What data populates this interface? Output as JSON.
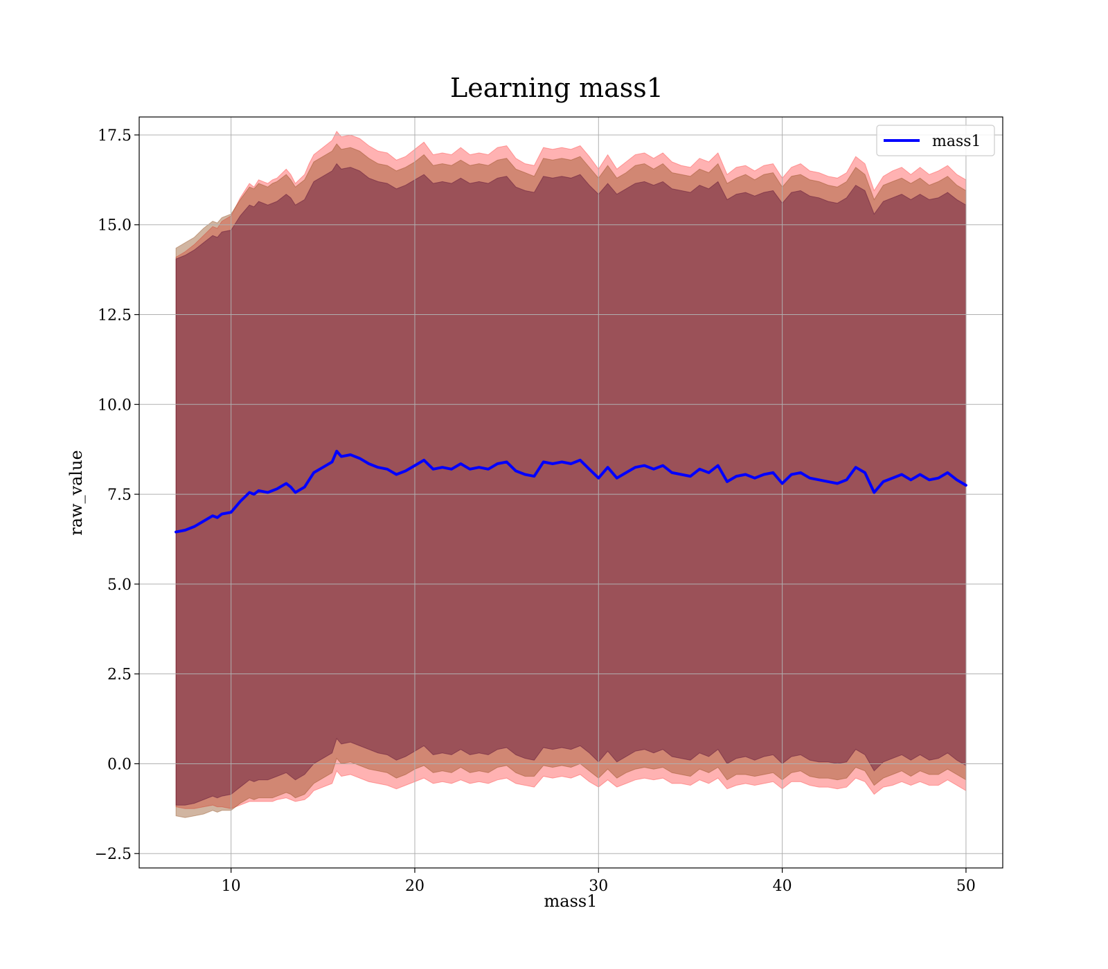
{
  "chart_data": {
    "type": "line",
    "title": "Learning mass1",
    "xlabel": "mass1",
    "ylabel": "raw_value",
    "xlim": [
      5,
      52
    ],
    "ylim": [
      -2.9,
      18.0
    ],
    "xticks": [
      10,
      20,
      30,
      40,
      50
    ],
    "xtick_labels": [
      "10",
      "20",
      "30",
      "40",
      "50"
    ],
    "yticks": [
      -2.5,
      0.0,
      2.5,
      5.0,
      7.5,
      10.0,
      12.5,
      15.0,
      17.5
    ],
    "ytick_labels": [
      "−2.5",
      "0.0",
      "2.5",
      "5.0",
      "7.5",
      "10.0",
      "12.5",
      "15.0",
      "17.5"
    ],
    "grid": true,
    "legend": {
      "position": "upper-right",
      "entries": [
        "mass1"
      ]
    },
    "colors": {
      "line": "#0000ff",
      "band_outer": "#ff0000",
      "band_middle": "#8b4513",
      "band_inner": "#4b0030"
    },
    "x": [
      7.0,
      7.5,
      8.0,
      8.5,
      9.0,
      9.25,
      9.5,
      10.0,
      10.25,
      10.5,
      11.0,
      11.25,
      11.5,
      12.0,
      12.25,
      12.5,
      13.0,
      13.25,
      13.5,
      14.0,
      14.25,
      14.5,
      15.0,
      15.5,
      15.75,
      16.0,
      16.5,
      17.0,
      17.5,
      18.0,
      18.5,
      19.0,
      19.5,
      20.0,
      20.5,
      21.0,
      21.5,
      22.0,
      22.5,
      23.0,
      23.5,
      24.0,
      24.5,
      25.0,
      25.5,
      26.0,
      26.5,
      27.0,
      27.5,
      28.0,
      28.5,
      29.0,
      29.5,
      30.0,
      30.5,
      31.0,
      31.5,
      32.0,
      32.5,
      33.0,
      33.5,
      34.0,
      34.5,
      35.0,
      35.5,
      36.0,
      36.5,
      37.0,
      37.5,
      38.0,
      38.5,
      39.0,
      39.5,
      40.0,
      40.5,
      41.0,
      41.5,
      42.0,
      42.5,
      43.0,
      43.5,
      44.0,
      44.5,
      45.0,
      45.5,
      46.0,
      46.5,
      47.0,
      47.5,
      48.0,
      48.5,
      49.0,
      49.5,
      50.0
    ],
    "series": [
      {
        "name": "mass1",
        "values": [
          6.45,
          6.5,
          6.6,
          6.75,
          6.9,
          6.85,
          6.95,
          7.0,
          7.15,
          7.3,
          7.55,
          7.5,
          7.6,
          7.55,
          7.6,
          7.65,
          7.8,
          7.7,
          7.55,
          7.7,
          7.9,
          8.1,
          8.25,
          8.4,
          8.7,
          8.55,
          8.6,
          8.5,
          8.35,
          8.25,
          8.2,
          8.05,
          8.15,
          8.3,
          8.45,
          8.2,
          8.25,
          8.2,
          8.35,
          8.2,
          8.25,
          8.2,
          8.35,
          8.4,
          8.15,
          8.05,
          8.0,
          8.4,
          8.35,
          8.4,
          8.35,
          8.45,
          8.2,
          7.95,
          8.25,
          7.95,
          8.1,
          8.25,
          8.3,
          8.2,
          8.3,
          8.1,
          8.05,
          8.0,
          8.2,
          8.1,
          8.3,
          7.85,
          8.0,
          8.05,
          7.95,
          8.05,
          8.1,
          7.8,
          8.05,
          8.1,
          7.95,
          7.9,
          7.85,
          7.8,
          7.9,
          8.25,
          8.1,
          7.55,
          7.85,
          7.95,
          8.05,
          7.9,
          8.05,
          7.9,
          7.95,
          8.1,
          7.9,
          7.75
        ],
        "band_outer": [
          7.65,
          7.75,
          7.85,
          7.95,
          8.05,
          8.05,
          8.15,
          8.25,
          8.35,
          8.45,
          8.6,
          8.55,
          8.65,
          8.6,
          8.65,
          8.65,
          8.75,
          8.7,
          8.6,
          8.7,
          8.8,
          8.85,
          8.9,
          8.95,
          8.9,
          8.9,
          8.9,
          8.9,
          8.85,
          8.8,
          8.8,
          8.75,
          8.75,
          8.8,
          8.85,
          8.75,
          8.75,
          8.75,
          8.8,
          8.75,
          8.75,
          8.75,
          8.8,
          8.8,
          8.7,
          8.65,
          8.65,
          8.75,
          8.75,
          8.75,
          8.75,
          8.75,
          8.7,
          8.6,
          8.7,
          8.6,
          8.65,
          8.7,
          8.7,
          8.65,
          8.7,
          8.65,
          8.6,
          8.6,
          8.65,
          8.65,
          8.7,
          8.55,
          8.6,
          8.6,
          8.55,
          8.6,
          8.6,
          8.5,
          8.55,
          8.6,
          8.55,
          8.55,
          8.5,
          8.5,
          8.55,
          8.65,
          8.6,
          8.4,
          8.5,
          8.55,
          8.55,
          8.5,
          8.55,
          8.5,
          8.55,
          8.55,
          8.5,
          8.5
        ],
        "band_middle": [
          7.9,
          8.0,
          8.05,
          8.15,
          8.2,
          8.2,
          8.25,
          8.3,
          8.35,
          8.4,
          8.5,
          8.5,
          8.55,
          8.5,
          8.55,
          8.55,
          8.6,
          8.55,
          8.5,
          8.55,
          8.6,
          8.65,
          8.65,
          8.65,
          8.55,
          8.55,
          8.55,
          8.55,
          8.5,
          8.45,
          8.45,
          8.45,
          8.45,
          8.45,
          8.5,
          8.45,
          8.45,
          8.45,
          8.45,
          8.45,
          8.45,
          8.45,
          8.45,
          8.45,
          8.4,
          8.4,
          8.35,
          8.45,
          8.45,
          8.45,
          8.45,
          8.45,
          8.4,
          8.35,
          8.4,
          8.35,
          8.35,
          8.4,
          8.4,
          8.35,
          8.4,
          8.35,
          8.35,
          8.35,
          8.35,
          8.35,
          8.4,
          8.3,
          8.3,
          8.35,
          8.3,
          8.35,
          8.35,
          8.25,
          8.3,
          8.3,
          8.3,
          8.3,
          8.25,
          8.25,
          8.3,
          8.35,
          8.3,
          8.15,
          8.25,
          8.25,
          8.25,
          8.25,
          8.25,
          8.2,
          8.25,
          8.25,
          8.2,
          8.2
        ],
        "band_inner": [
          7.6,
          7.65,
          7.7,
          7.75,
          7.8,
          7.8,
          7.85,
          7.85,
          7.9,
          7.95,
          8.0,
          8.0,
          8.05,
          8.0,
          8.0,
          8.0,
          8.05,
          8.05,
          8.0,
          8.0,
          8.05,
          8.1,
          8.1,
          8.1,
          8.0,
          8.0,
          8.0,
          8.0,
          7.95,
          7.95,
          7.95,
          7.95,
          7.95,
          7.95,
          7.95,
          7.95,
          7.95,
          7.95,
          7.95,
          7.95,
          7.95,
          7.95,
          7.95,
          7.95,
          7.9,
          7.9,
          7.9,
          7.95,
          7.95,
          7.95,
          7.95,
          7.95,
          7.9,
          7.9,
          7.9,
          7.9,
          7.9,
          7.9,
          7.9,
          7.9,
          7.9,
          7.9,
          7.9,
          7.9,
          7.9,
          7.9,
          7.9,
          7.85,
          7.85,
          7.85,
          7.85,
          7.85,
          7.85,
          7.8,
          7.85,
          7.85,
          7.85,
          7.85,
          7.8,
          7.8,
          7.85,
          7.85,
          7.85,
          7.75,
          7.8,
          7.8,
          7.8,
          7.8,
          7.8,
          7.8,
          7.8,
          7.8,
          7.8,
          7.8
        ]
      }
    ]
  }
}
